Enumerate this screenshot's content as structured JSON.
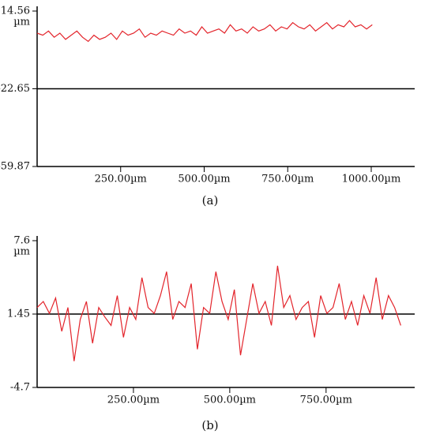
{
  "chart_data": [
    {
      "type": "line",
      "caption": "(a)",
      "y_unit": "µm",
      "color": "#e3242b",
      "midline": true,
      "x": [
        0,
        17,
        34,
        51,
        68,
        85,
        102,
        119,
        136,
        153,
        170,
        187,
        204,
        221,
        238,
        255,
        272,
        289,
        306,
        323,
        340,
        357,
        374,
        391,
        408,
        425,
        442,
        459,
        476,
        493,
        510,
        527,
        544,
        561,
        578,
        595,
        612,
        629,
        646,
        663,
        680,
        697,
        714,
        731,
        748,
        765,
        782,
        799,
        816,
        833,
        850,
        867,
        884,
        901,
        918,
        935,
        952,
        969,
        986,
        1003
      ],
      "values": [
        4,
        3,
        5,
        2,
        4,
        1,
        3,
        5,
        2,
        0,
        3,
        1,
        2,
        4,
        1,
        5,
        3,
        4,
        6,
        2,
        4,
        3,
        5,
        4,
        3,
        6,
        4,
        5,
        3,
        7,
        4,
        5,
        6,
        4,
        8,
        5,
        6,
        4,
        7,
        5,
        6,
        8,
        5,
        7,
        6,
        9,
        7,
        6,
        8,
        5,
        7,
        9,
        6,
        8,
        7,
        10,
        7,
        8,
        6,
        8
      ],
      "xlim": [
        0,
        1130
      ],
      "ylim": [
        -59.87,
        14.56
      ],
      "yticks": [
        -59.87,
        -22.65,
        14.56
      ],
      "xticks": [
        {
          "value": 250,
          "label": "250.00µm"
        },
        {
          "value": 500,
          "label": "500.00µm"
        },
        {
          "value": 750,
          "label": "750.00µm"
        },
        {
          "value": 1000,
          "label": "1000.00µm"
        }
      ]
    },
    {
      "type": "line",
      "caption": "(b)",
      "y_unit": "µm",
      "color": "#e3242b",
      "midline": true,
      "x": [
        0,
        16,
        32,
        48,
        64,
        80,
        96,
        112,
        128,
        144,
        160,
        176,
        192,
        208,
        224,
        240,
        256,
        272,
        288,
        304,
        320,
        336,
        352,
        368,
        384,
        400,
        416,
        432,
        448,
        464,
        480,
        496,
        512,
        528,
        544,
        560,
        576,
        592,
        608,
        624,
        640,
        656,
        672,
        688,
        704,
        720,
        736,
        752,
        768,
        784,
        800,
        816,
        832,
        848,
        864,
        880,
        896,
        912,
        928,
        944
      ],
      "values": [
        2,
        2.5,
        1.5,
        2.8,
        0,
        2,
        -2.5,
        1,
        2.5,
        -1,
        2,
        1.2,
        0.5,
        3,
        -0.5,
        2,
        1,
        4.5,
        2,
        1.5,
        3,
        5,
        1,
        2.5,
        2,
        4,
        -1.5,
        2,
        1.5,
        5,
        2.5,
        1,
        3.5,
        -2,
        1,
        4,
        1.5,
        2.5,
        0.5,
        5.5,
        2,
        3,
        1,
        2,
        2.5,
        -0.5,
        3,
        1.5,
        2,
        4,
        1,
        2.5,
        0.5,
        3,
        1.5,
        4.5,
        1,
        3,
        2,
        0.5
      ],
      "xlim": [
        0,
        980
      ],
      "ylim": [
        -4.7,
        7.6
      ],
      "yticks": [
        -4.7,
        1.45,
        7.6
      ],
      "xticks": [
        {
          "value": 250,
          "label": "250.00µm"
        },
        {
          "value": 500,
          "label": "500.00µm"
        },
        {
          "value": 750,
          "label": "750.00µm"
        }
      ]
    }
  ]
}
